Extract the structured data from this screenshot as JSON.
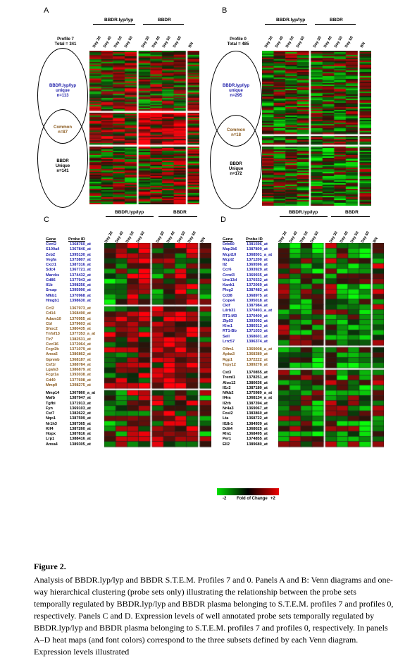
{
  "panels": {
    "A": {
      "letter": "A",
      "group1": "BBDR.lyp/lyp",
      "group2": "BBDR",
      "days": [
        "Day 30",
        "Day 40",
        "Day 50",
        "Day 60",
        "Day 30",
        "Day 40",
        "Day 50",
        "Day 60",
        "BN"
      ],
      "profile": "Profile 7",
      "total": "Total = 341",
      "unique1_l1": "BBDR.lyp/lyp",
      "unique1_l2": "unique",
      "unique1_l3": "n=113",
      "common_l1": "Common",
      "common_l2": "n=87",
      "unique2_l1": "BBDR",
      "unique2_l2": "Unique",
      "unique2_l3": "n=141"
    },
    "B": {
      "letter": "B",
      "group1": "BBDR.lyp/lyp",
      "group2": "BBDR",
      "days": [
        "Day 30",
        "Day 40",
        "Day 50",
        "Day 60",
        "Day 30",
        "Day 40",
        "Day 50",
        "Day 60",
        "BN"
      ],
      "profile": "Profile 0",
      "total": "Total = 485",
      "unique1_l1": "BBDR.lyp/lyp",
      "unique1_l2": "unique",
      "unique1_l3": "n=295",
      "common_l1": "Common",
      "common_l2": "n=18",
      "unique2_l1": "BBDR",
      "unique2_l2": "Unique",
      "unique2_l3": "n=172"
    },
    "C": {
      "letter": "C",
      "group1": "BBDR.lyp/lyp",
      "group2": "BBDR",
      "days": [
        "Day 30",
        "Day 40",
        "Day 50",
        "Day 60",
        "Day 30",
        "Day 40",
        "Day 50",
        "Day 60",
        "BN"
      ],
      "gene_header": "Gene",
      "probe_header": "Probe ID",
      "blue": [
        [
          "Cxcl2",
          "1368760_at"
        ],
        [
          "S100a4",
          "1367846_at"
        ],
        [
          "Zeb2",
          "1395130_at"
        ],
        [
          "Vegfa",
          "1373807_at"
        ],
        [
          "Cxcl1",
          "1387316_at"
        ],
        [
          "Sdc4",
          "1367721_at"
        ],
        [
          "Marcks",
          "1374432_at"
        ],
        [
          "Cd86",
          "1377943_at"
        ],
        [
          "Il1b",
          "1398256_at"
        ],
        [
          "Srcap",
          "1395990_at"
        ],
        [
          "Nfkb1",
          "1370968_at"
        ],
        [
          "Hmgb1",
          "1398630_at"
        ]
      ],
      "brown": [
        [
          "Ccl2",
          "1367973_at"
        ],
        [
          "Cd14",
          "1368490_at"
        ],
        [
          "Adam10",
          "1370955_at"
        ],
        [
          "Cbl",
          "1379603_at"
        ],
        [
          "Shoc2",
          "1380435_at"
        ],
        [
          "Tnfsf13",
          "1377353_a_at"
        ],
        [
          "Tlr7",
          "1382531_at"
        ],
        [
          "Cxcl16",
          "1372064_at"
        ],
        [
          "Fcgr2b",
          "1371079_at"
        ],
        [
          "Anxa5",
          "1386862_at"
        ],
        [
          "Gpnmb",
          "1368187_at"
        ],
        [
          "Csf1r",
          "1388784_at"
        ],
        [
          "Lgals3",
          "1386879_at"
        ],
        [
          "Fcgr1a",
          "1393038_at"
        ],
        [
          "Cd40",
          "1377698_at"
        ],
        [
          "Mmp9",
          "1398275_at"
        ]
      ],
      "black": [
        [
          "Mmp14",
          "1367860_a_at"
        ],
        [
          "Mafb",
          "1387947_at"
        ],
        [
          "Tgfbi",
          "1371913_at"
        ],
        [
          "Fyn",
          "1369103_at"
        ],
        [
          "Cst7",
          "1382622_at"
        ],
        [
          "Nqo1",
          "1387599_at"
        ],
        [
          "Nr1h3",
          "1387365_at"
        ],
        [
          "Klf4",
          "1387260_at"
        ],
        [
          "Hopx",
          "1387816_at"
        ],
        [
          "Lrp1",
          "1388416_at"
        ],
        [
          "Anxa4",
          "1389305_at"
        ]
      ]
    },
    "D": {
      "letter": "D",
      "group1": "BBDR.lyp/lyp",
      "group2": "BBDR",
      "days": [
        "Day 30",
        "Day 40",
        "Day 50",
        "Day 60",
        "Day 30",
        "Day 40",
        "Day 50",
        "Day 60",
        "BN"
      ],
      "gene_header": "Gene",
      "probe_header": "Probe ID",
      "blue": [
        [
          "Ddx60",
          "1381596_at"
        ],
        [
          "Map2k6",
          "1387809_at"
        ],
        [
          "Mcpt10",
          "1368501_a_at"
        ],
        [
          "Mcpt2",
          "1371200_at"
        ],
        [
          "Il2",
          "1369596_at"
        ],
        [
          "Ccr6",
          "1393929_at"
        ],
        [
          "Ccnd3",
          "1369935_at"
        ],
        [
          "Unc13d",
          "1370332_at"
        ],
        [
          "Kank1",
          "1372069_at"
        ],
        [
          "Plcg2",
          "1387483_at"
        ],
        [
          "Cd38",
          "1368975_at"
        ],
        [
          "Cope4",
          "1395018_at"
        ],
        [
          "Ckif",
          "1387984_at"
        ],
        [
          "Lilrb31",
          "1370493_a_at"
        ],
        [
          "RT1-M3",
          "1370400_at"
        ],
        [
          "Zfp53",
          "1393092_at"
        ],
        [
          "Klre1",
          "1380313_at"
        ],
        [
          "RT1-Bb",
          "1371033_at"
        ],
        [
          "Sell",
          "1368601_at"
        ],
        [
          "Lrrc57",
          "1396374_at"
        ]
      ],
      "brown": [
        [
          "Olfm1",
          "1369008_a_at"
        ],
        [
          "Apba3",
          "1368389_at"
        ],
        [
          "Rgp1",
          "1372222_at"
        ],
        [
          "Tspy12",
          "1389278_at"
        ]
      ],
      "black": [
        [
          "Cst3",
          "1370855_at"
        ],
        [
          "Treml1",
          "1378251_at"
        ],
        [
          "Alox12",
          "1380636_at"
        ],
        [
          "Il1r2",
          "1387180_at"
        ],
        [
          "Nfkb2",
          "1375989_a_at"
        ],
        [
          "Il4ra",
          "1368134_a_at"
        ],
        [
          "Il2rb",
          "1387394_at"
        ],
        [
          "Nr4a3",
          "1369067_at"
        ],
        [
          "Fosl2",
          "1383860_at"
        ],
        [
          "Lta",
          "1368722_at"
        ],
        [
          "Il18r1",
          "1384939_at"
        ],
        [
          "Ddit4",
          "1368025_at"
        ],
        [
          "Rln1",
          "1368495_at"
        ],
        [
          "Per1",
          "1374855_at"
        ],
        [
          "Ell2",
          "1389680_at"
        ]
      ]
    }
  },
  "legend": {
    "min_label": "-2",
    "center_label": "Fold of Change",
    "max_label": "+2",
    "colors": {
      "low": "#00e000",
      "mid": "#000000",
      "high": "#ee0000"
    }
  },
  "caption": {
    "title": "Figure 2.",
    "text": "Analysis of BBDR.lyp/lyp and BBDR S.T.E.M. Profiles 7 and 0. Panels A and B: Venn diagrams and one-way hierarchical clustering (probe sets only) illustrating the relationship between the probe sets temporally regulated by BBDR.lyp/lyp and BBDR plasma belonging to S.T.E.M. profiles 7 and profiles 0, respectively. Panels C and D. Expression levels of well annotated probe sets temporally regulated by BBDR.lyp/lyp and BBDR plasma belonging to S.T.E.M. profiles 7 and profiles 0, respectively. In panels A–D heat maps (and font colors) correspond to the three subsets defined by each Venn diagram. Expression levels illustrated"
  }
}
